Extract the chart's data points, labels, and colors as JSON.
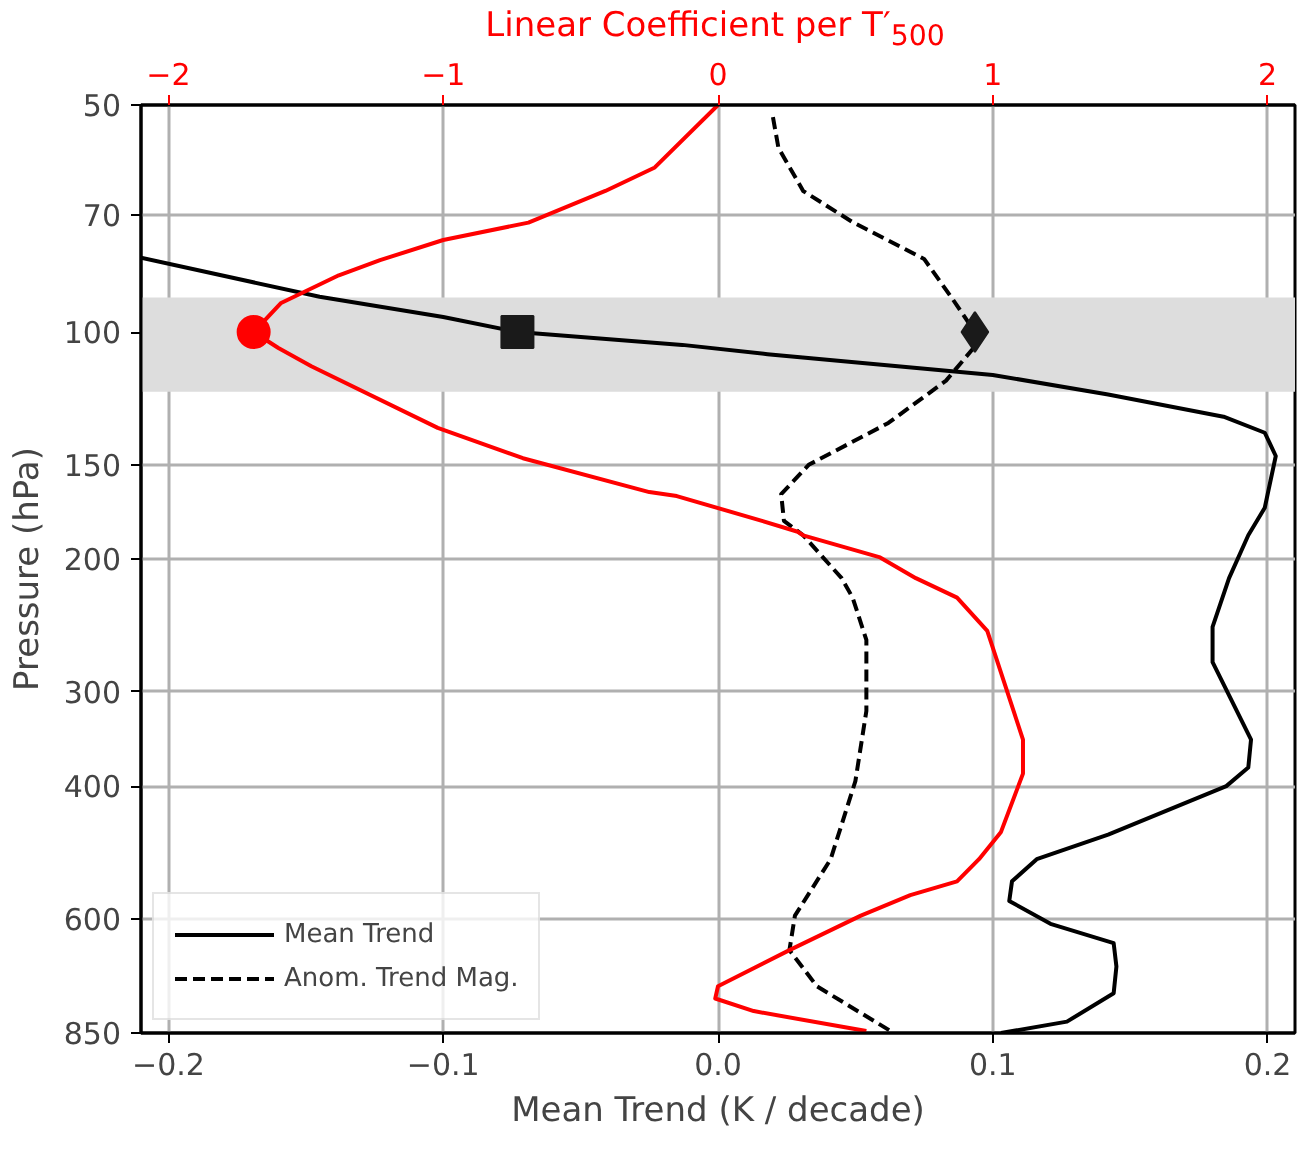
{
  "chart_data": {
    "type": "line",
    "xlabel": "Mean Trend (K / decade)",
    "ylabel": "Pressure (hPa)",
    "x2label": "Linear Coefficient per T′$_{500}$",
    "xlim": [
      -0.21,
      0.21
    ],
    "xticks": [
      {
        "value": -0.2,
        "label": "−0.2"
      },
      {
        "value": -0.1,
        "label": "−0.1"
      },
      {
        "value": 0,
        "label": "0.0"
      },
      0.1,
      0.2
    ],
    "x2lim": [
      -2.1,
      2.1
    ],
    "x2ticks": [
      {
        "value": -2,
        "label": "−2"
      },
      {
        "value": -1,
        "label": "−1"
      },
      0,
      1,
      2
    ],
    "ylim": [
      850,
      50
    ],
    "yticks": [
      50,
      70,
      100,
      150,
      200,
      300,
      400,
      600,
      850
    ],
    "log": "y",
    "grid": true,
    "legend": "bottom left",
    "bands": [
      {
        "axis": "y",
        "from": 90,
        "to": 120,
        "color": "#dddddd"
      }
    ],
    "series": [
      {
        "name": "Mean Trend",
        "color": "#000000",
        "line_style": "solid",
        "x": [
          -0.21,
          -0.145,
          -0.1,
          -0.073,
          -0.013,
          0.018,
          0.1,
          0.142,
          0.184,
          0.199,
          0.203,
          0.199,
          0.193,
          0.186,
          0.18,
          0.18,
          0.194,
          0.193,
          0.185,
          0.142,
          0.116,
          0.107,
          0.106,
          0.121,
          0.144,
          0.145,
          0.144,
          0.127,
          0.103
        ],
        "values": [
          79.7,
          89.8,
          95.5,
          100,
          104,
          107,
          114,
          121,
          129.5,
          136,
          146,
          171,
          186,
          212,
          246,
          274,
          347,
          378,
          400,
          464,
          500,
          535,
          568,
          609,
          646,
          694,
          753,
          821,
          850
        ]
      },
      {
        "name": "Anom. Trend Mag.",
        "color": "#000000",
        "line_style": "dashed",
        "x": [
          0.02,
          0.022,
          0.031,
          0.049,
          0.075,
          0.085,
          0.0935,
          0.093,
          0.083,
          0.062,
          0.033,
          0.023,
          0.024,
          0.031,
          0.045,
          0.049,
          0.054,
          0.054,
          0.05,
          0.041,
          0.028,
          0.026,
          0.036,
          0.064
        ],
        "values": [
          51.9,
          57,
          65,
          71.5,
          80,
          90,
          100,
          105,
          116,
          132,
          150,
          164,
          178,
          186,
          212,
          225,
          256,
          318,
          394,
          500,
          594,
          660,
          737,
          850
        ]
      },
      {
        "axis": "x2",
        "color": "#ff0000",
        "line_style": "solid",
        "x": [
          0.0,
          -0.23,
          -0.41,
          -0.69,
          -1.0,
          -1.23,
          -1.38,
          -1.59,
          -1.69,
          -1.6,
          -1.48,
          -1.02,
          -0.71,
          -0.25,
          -0.15,
          0.16,
          0.29,
          0.31,
          0.59,
          0.72,
          0.87,
          0.98,
          1.11,
          1.11,
          1.03,
          0.95,
          0.87,
          0.7,
          0.52,
          0.26,
          0.0,
          -0.01,
          0.13,
          0.54
        ],
        "values": [
          50,
          60.5,
          65,
          71.6,
          75.5,
          80.3,
          84.1,
          91.5,
          100,
          105,
          111,
          134,
          147,
          163,
          165,
          178,
          184,
          186,
          199,
          212,
          225,
          249,
          347,
          385,
          460,
          500,
          535,
          558,
          594,
          660,
          737,
          765,
          795,
          845
        ]
      },
      {
        "type": "scatter",
        "axis": "x2",
        "color": "#ff0000",
        "marker": "circle",
        "x": [
          -1.69
        ],
        "values": [
          100
        ]
      },
      {
        "type": "scatter",
        "color": "#1a1a1a",
        "marker": "square",
        "x": [
          -0.073
        ],
        "values": [
          100
        ]
      },
      {
        "type": "scatter",
        "color": "#1a1a1a",
        "marker": "diamond",
        "x": [
          0.0935
        ],
        "values": [
          100
        ]
      }
    ]
  }
}
